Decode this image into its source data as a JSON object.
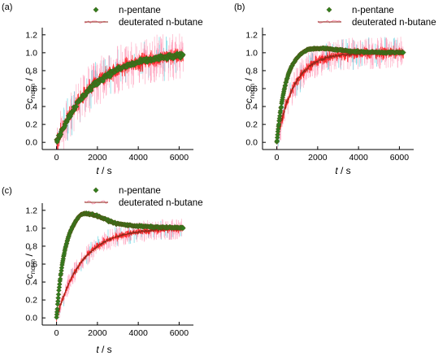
{
  "colors": {
    "pentane": "#2f7d1f",
    "pentane_edge": "#5a4a10",
    "butane": "#8b2a1a",
    "noise": "#ff1010",
    "noise_light": "#ff8fb0",
    "noise_cyan": "#33c4d6",
    "axis": "#000000"
  },
  "chart_data": [
    {
      "panel_label": "(a)",
      "type": "scatter",
      "xlabel_var": "t",
      "xlabel_unit": " / s",
      "ylabel_var": "c",
      "ylabel_sub": "norm",
      "ylabel_unit": " / -",
      "xlim": [
        -700,
        6700
      ],
      "ylim": [
        -0.08,
        1.28
      ],
      "xticks": [
        "0",
        "2000",
        "4000",
        "6000"
      ],
      "yticks": [
        "0.0",
        "0.2",
        "0.4",
        "0.6",
        "0.8",
        "1.0",
        "1.2"
      ],
      "series": [
        {
          "name": "n-pentane",
          "marker": "diamond",
          "curve": "exp",
          "tau": 1800,
          "peak": 0,
          "noise": 0.02
        },
        {
          "name": "deuterated n-butane",
          "marker": "line",
          "curve": "exp",
          "tau": 1800,
          "peak": 0,
          "noise": 0.09
        }
      ]
    },
    {
      "panel_label": "(b)",
      "type": "scatter",
      "xlabel_var": "t",
      "xlabel_unit": " / s",
      "ylabel_var": "c",
      "ylabel_sub": "norm",
      "ylabel_unit": " / -",
      "xlim": [
        -700,
        6700
      ],
      "ylim": [
        -0.08,
        1.28
      ],
      "xticks": [
        "0",
        "2000",
        "4000",
        "6000"
      ],
      "yticks": [
        "0.0",
        "0.2",
        "0.4",
        "0.6",
        "0.8",
        "1.0",
        "1.2"
      ],
      "series": [
        {
          "name": "n-pentane",
          "marker": "diamond",
          "curve": "overshoot",
          "tau": 420,
          "peak": 0.06,
          "peak_t": 1500,
          "noise": 0.006
        },
        {
          "name": "deuterated n-butane",
          "marker": "line",
          "curve": "exp",
          "tau": 850,
          "peak": 0,
          "noise": 0.06
        }
      ]
    },
    {
      "panel_label": "(c)",
      "type": "scatter",
      "xlabel_var": "t",
      "xlabel_unit": " / s",
      "ylabel_var": "c",
      "ylabel_sub": "norm",
      "ylabel_unit": " / -",
      "xlim": [
        -700,
        6700
      ],
      "ylim": [
        -0.08,
        1.28
      ],
      "xticks": [
        "0",
        "2000",
        "4000",
        "6000"
      ],
      "yticks": [
        "0.0",
        "0.2",
        "0.4",
        "0.6",
        "0.8",
        "1.0",
        "1.2"
      ],
      "series": [
        {
          "name": "n-pentane",
          "marker": "diamond",
          "curve": "overshoot",
          "tau": 330,
          "peak": 0.18,
          "peak_t": 1200,
          "noise": 0.006
        },
        {
          "name": "deuterated n-butane",
          "marker": "line",
          "curve": "exp",
          "tau": 1250,
          "peak": 0,
          "noise": 0.04
        }
      ]
    }
  ]
}
